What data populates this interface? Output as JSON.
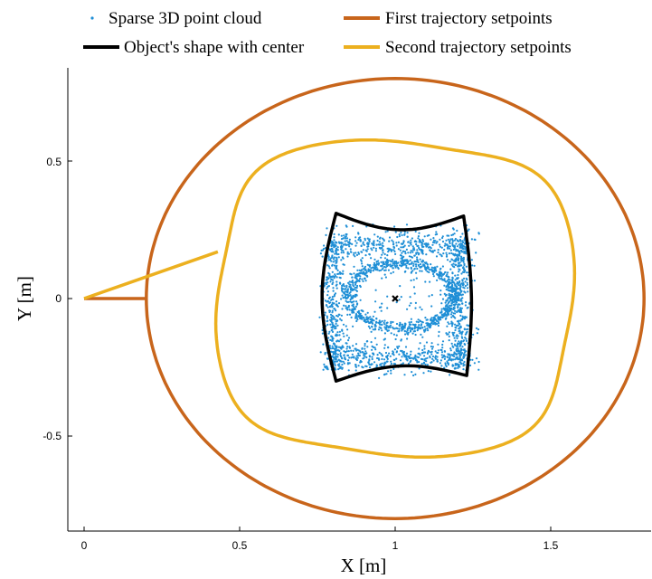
{
  "chart_data": {
    "type": "line",
    "title": "",
    "xlabel": "X [m]",
    "ylabel": "Y [m]",
    "xlim": [
      0,
      1.82
    ],
    "ylim": [
      -0.82,
      0.82
    ],
    "x_ticks": [
      "0",
      "0.5",
      "1",
      "1.5"
    ],
    "x_tick_values": [
      0,
      0.5,
      1,
      1.5
    ],
    "y_ticks": [
      "0.5",
      "0",
      "-0.5"
    ],
    "y_tick_values": [
      0.5,
      0,
      -0.5
    ],
    "grid": false,
    "legend_position": "top",
    "colors": {
      "cloud": "#1f8fd6",
      "shape": "#000000",
      "first": "#c8651b",
      "second": "#ecb01f"
    },
    "legend": [
      {
        "label": "Sparse 3D point cloud",
        "kind": "marker",
        "color": "#1f8fd6"
      },
      {
        "label": "First trajectory setpoints",
        "kind": "line",
        "color": "#c8651b"
      },
      {
        "label": "Object's shape with center",
        "kind": "line",
        "color": "#000000"
      },
      {
        "label": "Second trajectory setpoints",
        "kind": "line",
        "color": "#ecb01f"
      }
    ],
    "series": [
      {
        "name": "First trajectory setpoints",
        "shape": "circle",
        "center": [
          1.0,
          0.0
        ],
        "radius": 0.8,
        "start_segment": [
          [
            0,
            0
          ],
          [
            0.2,
            0
          ]
        ]
      },
      {
        "name": "Second trajectory setpoints",
        "shape": "wavy-square",
        "center": [
          1.0,
          0.0
        ],
        "mean_radius": 0.69,
        "lobe_amplitude": 0.1,
        "start_segment": [
          [
            0,
            0
          ],
          [
            0.43,
            0.17
          ]
        ]
      },
      {
        "name": "Object's shape with center",
        "shape": "concave-square",
        "center": [
          1.0,
          0.0
        ],
        "corners": [
          [
            0.81,
            0.31
          ],
          [
            1.22,
            0.3
          ],
          [
            1.23,
            -0.28
          ],
          [
            0.81,
            -0.3
          ]
        ]
      },
      {
        "name": "Sparse 3D point cloud",
        "shape": "scatter",
        "center": [
          1.0,
          0.0
        ],
        "extent_x": [
          0.74,
          1.29
        ],
        "extent_y": [
          -0.32,
          0.29
        ]
      }
    ]
  }
}
